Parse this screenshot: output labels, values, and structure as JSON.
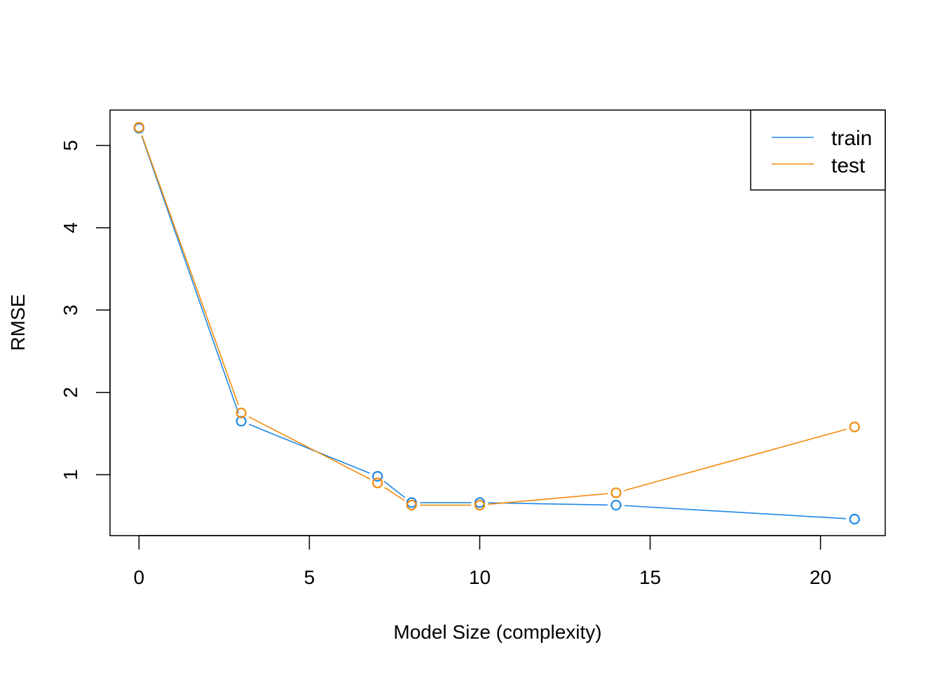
{
  "chart_data": {
    "type": "line",
    "xlabel": "Model Size (complexity)",
    "ylabel": "RMSE",
    "xlim": [
      -0.85,
      21.9
    ],
    "ylim": [
      0.26,
      5.43
    ],
    "xticks": [
      0,
      5,
      10,
      15,
      20
    ],
    "yticks": [
      1,
      2,
      3,
      4,
      5
    ],
    "grid": false,
    "legend_position": "top-right",
    "series": [
      {
        "name": "train",
        "color": "#1E88E5",
        "x": [
          0,
          3,
          7,
          8,
          10,
          14,
          21
        ],
        "y": [
          5.21,
          1.65,
          0.98,
          0.66,
          0.66,
          0.63,
          0.46
        ]
      },
      {
        "name": "test",
        "color": "#F28A0B",
        "x": [
          0,
          3,
          7,
          8,
          10,
          14,
          21
        ],
        "y": [
          5.22,
          1.75,
          0.9,
          0.63,
          0.63,
          0.78,
          1.58
        ]
      }
    ]
  }
}
